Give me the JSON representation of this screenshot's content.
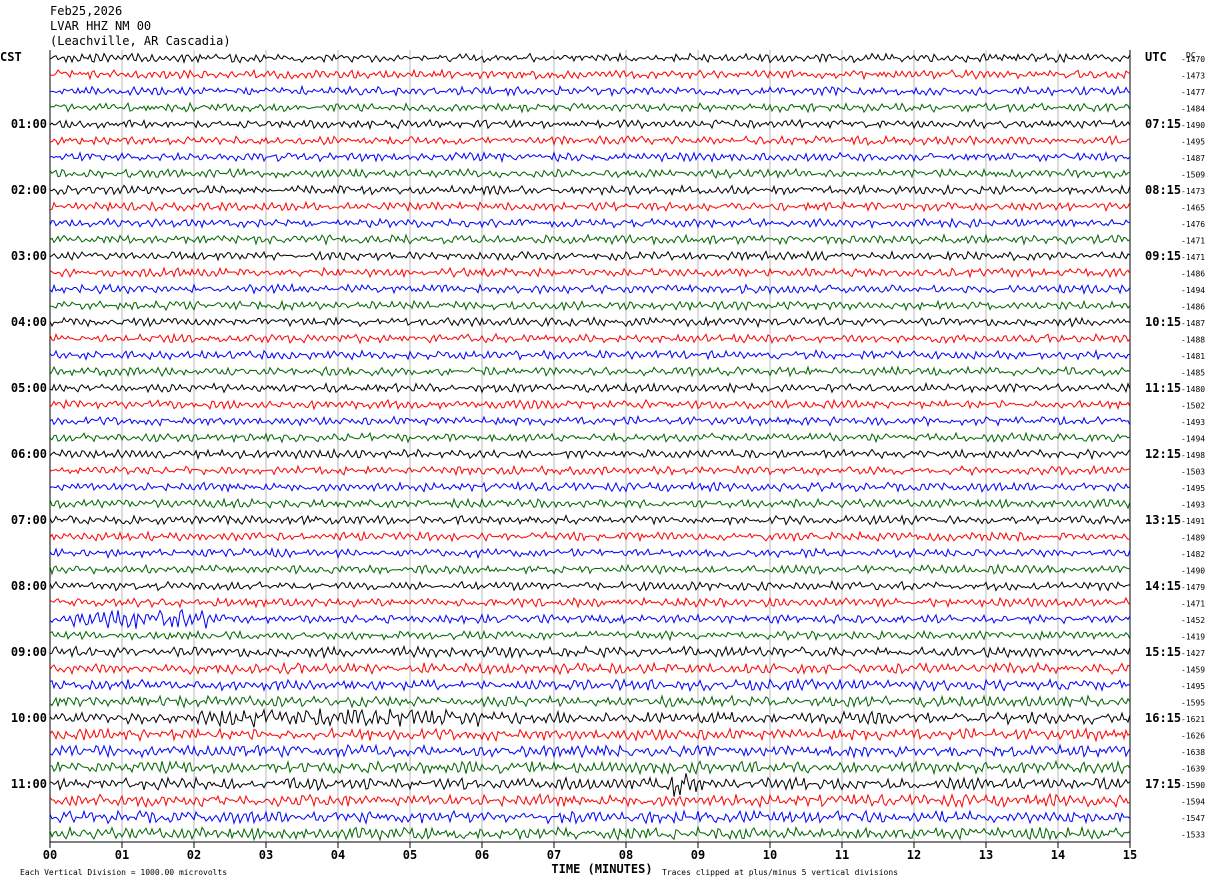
{
  "header": {
    "date": "Feb25,2026",
    "station": "LVAR HHZ NM 00",
    "location": "(Leachville, AR Cascadia)"
  },
  "chart_data": {
    "type": "line",
    "title": "LVAR HHZ NM 00",
    "xlabel": "TIME (MINUTES)",
    "xlim": [
      0,
      15
    ],
    "x_ticks": [
      "00",
      "01",
      "02",
      "03",
      "04",
      "05",
      "06",
      "07",
      "08",
      "09",
      "10",
      "11",
      "12",
      "13",
      "14",
      "15"
    ],
    "left_timezone": "CST",
    "right_timezone": "UTC",
    "dc_label": "DC",
    "left_hour_labels": [
      "01:00",
      "02:00",
      "03:00",
      "04:00",
      "05:00",
      "06:00",
      "07:00",
      "08:00",
      "09:00",
      "10:00",
      "11:00"
    ],
    "right_hour_labels": [
      "07:15",
      "08:15",
      "09:15",
      "10:15",
      "11:15",
      "12:15",
      "13:15",
      "14:15",
      "15:15",
      "16:15",
      "17:15"
    ],
    "trace_colors": [
      "#000000",
      "#ff0000",
      "#0000ff",
      "#006400"
    ],
    "dc_offsets": [
      -1470,
      -1473,
      -1477,
      -1484,
      -1490,
      -1495,
      -1487,
      -1509,
      -1473,
      -1465,
      -1476,
      -1471,
      -1471,
      -1486,
      -1494,
      -1486,
      -1487,
      -1488,
      -1481,
      -1485,
      -1480,
      -1502,
      -1493,
      -1494,
      -1498,
      -1503,
      -1495,
      -1493,
      -1491,
      -1489,
      -1482,
      -1490,
      -1479,
      -1471,
      -1452,
      -1419,
      -1427,
      -1459,
      -1495,
      -1595,
      -1621,
      -1626,
      -1638,
      -1639,
      -1590,
      -1594,
      -1547,
      -1533
    ],
    "footer_left": "Each Vertical Division = 1000.00 microvolts",
    "footer_right": "Traces clipped at plus/minus 5 vertical divisions"
  }
}
